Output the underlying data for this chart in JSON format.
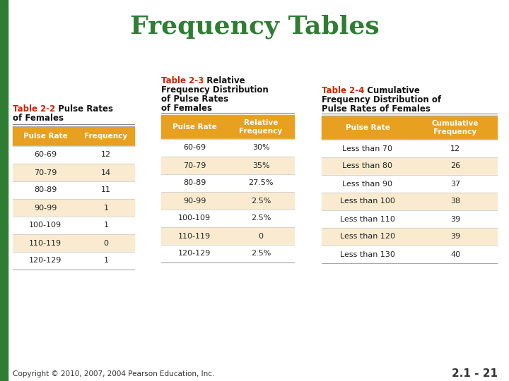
{
  "title": "Frequency Tables",
  "title_color": "#2E7D32",
  "background_color": "#FFFFFF",
  "left_bar_color": "#2E7D32",
  "copyright": "Copyright © 2010, 2007, 2004 Pearson Education, Inc.",
  "slide_num": "2.1 - 21",
  "header_bg": "#E8A020",
  "header_text_color": "#FFFFFF",
  "row_bg_alt": "#FAEBD0",
  "row_bg_white": "#FFFFFF",
  "table_label_color": "#CC2200",
  "table1": {
    "label": "Table 2-2",
    "title_line1": "Pulse Rates",
    "title_line2": "of Females",
    "col1": "Pulse Rate",
    "col2": "Frequency",
    "rows": [
      [
        "60-69",
        "12"
      ],
      [
        "70-79",
        "14"
      ],
      [
        "80-89",
        "11"
      ],
      [
        "90-99",
        "1"
      ],
      [
        "100-109",
        "1"
      ],
      [
        "110-119",
        "0"
      ],
      [
        "120-129",
        "1"
      ]
    ]
  },
  "table2": {
    "label": "Table 2-3",
    "title_line1": "Relative",
    "title_line2": "Frequency Distribution",
    "title_line3": "of Pulse Rates",
    "title_line4": "of Females",
    "col1": "Pulse Rate",
    "col2_line1": "Relative",
    "col2_line2": "Frequency",
    "rows": [
      [
        "60-69",
        "30%"
      ],
      [
        "70-79",
        "35%"
      ],
      [
        "80-89",
        "27.5%"
      ],
      [
        "90-99",
        "2.5%"
      ],
      [
        "100-109",
        "2.5%"
      ],
      [
        "110-119",
        "0"
      ],
      [
        "120-129",
        "2.5%"
      ]
    ]
  },
  "table3": {
    "label": "Table 2-4",
    "title_line1": "Cumulative",
    "title_line2": "Frequency Distribution of",
    "title_line3": "Pulse Rates of Females",
    "col1": "Pulse Rate",
    "col2_line1": "Cumulative",
    "col2_line2": "Frequency",
    "rows": [
      [
        "Less than 70",
        "12"
      ],
      [
        "Less than 80",
        "26"
      ],
      [
        "Less than 90",
        "37"
      ],
      [
        "Less than 100",
        "38"
      ],
      [
        "Less than 110",
        "39"
      ],
      [
        "Less than 120",
        "39"
      ],
      [
        "Less than 130",
        "40"
      ]
    ]
  }
}
